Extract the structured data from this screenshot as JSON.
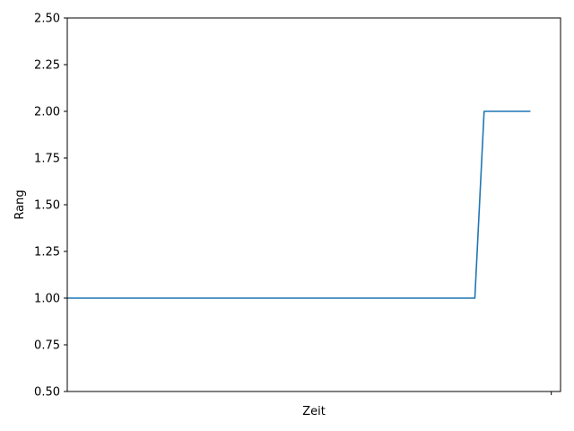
{
  "chart_data": {
    "type": "line",
    "title": "",
    "xlabel": "Zeit",
    "ylabel": "Rang",
    "ylim": [
      2.5,
      0.5
    ],
    "y_inverted": true,
    "yticks": [
      "0.50",
      "0.75",
      "1.00",
      "1.25",
      "1.50",
      "1.75",
      "2.00",
      "2.25",
      "2.50"
    ],
    "xlim": [
      0,
      106.5
    ],
    "xticks": [
      104.5
    ],
    "xtick_labels": [
      ""
    ],
    "grid": false,
    "series": [
      {
        "color": "#1f77b4",
        "x": [
          0,
          88,
          90,
          100
        ],
        "y": [
          1,
          1,
          2,
          2
        ]
      }
    ]
  }
}
